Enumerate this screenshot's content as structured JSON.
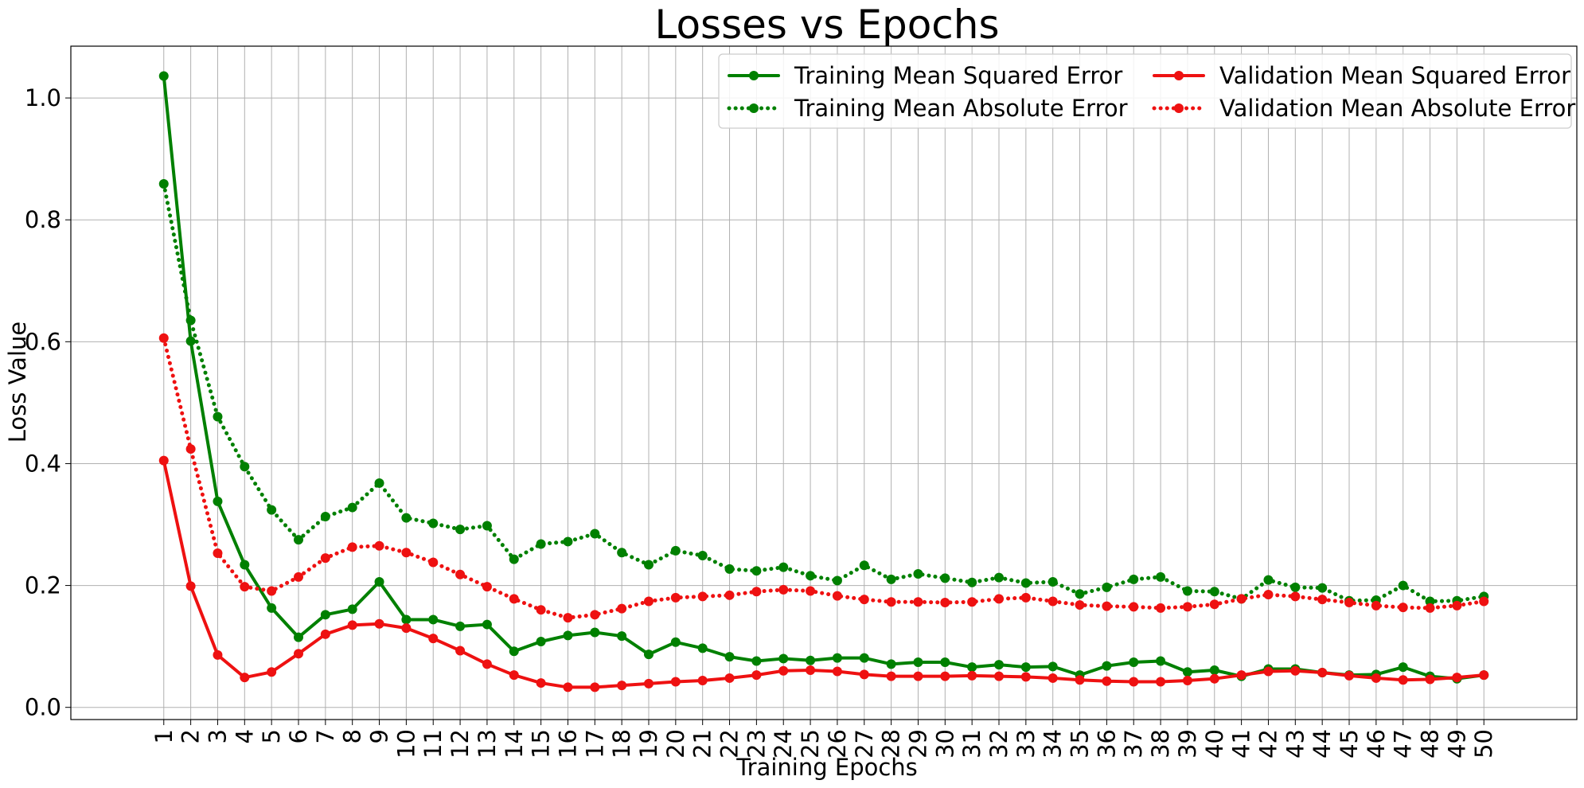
{
  "chart_data": {
    "type": "line",
    "title": "Losses vs Epochs",
    "xlabel": "Training Epochs",
    "ylabel": "Loss Value",
    "ylim": [
      -0.02,
      1.085
    ],
    "yticks": [
      "0.0",
      "0.2",
      "0.4",
      "0.6",
      "0.8",
      "1.0"
    ],
    "ytick_values": [
      0.0,
      0.2,
      0.4,
      0.6,
      0.8,
      1.0
    ],
    "grid": true,
    "legend_placement": "top-right",
    "x": [
      1,
      2,
      3,
      4,
      5,
      6,
      7,
      8,
      9,
      10,
      11,
      12,
      13,
      14,
      15,
      16,
      17,
      18,
      19,
      20,
      21,
      22,
      23,
      24,
      25,
      26,
      27,
      28,
      29,
      30,
      31,
      32,
      33,
      34,
      35,
      36,
      37,
      38,
      39,
      40,
      41,
      42,
      43,
      44,
      45,
      46,
      47,
      48,
      49,
      50
    ],
    "series": [
      {
        "name": "Training Mean Squared Error",
        "color": "#008000",
        "style": "solid",
        "values": [
          1.036,
          0.601,
          0.338,
          0.234,
          0.163,
          0.115,
          0.152,
          0.161,
          0.206,
          0.144,
          0.144,
          0.133,
          0.136,
          0.092,
          0.108,
          0.118,
          0.123,
          0.117,
          0.087,
          0.107,
          0.097,
          0.083,
          0.076,
          0.08,
          0.077,
          0.081,
          0.081,
          0.071,
          0.074,
          0.074,
          0.066,
          0.07,
          0.066,
          0.067,
          0.053,
          0.068,
          0.074,
          0.076,
          0.058,
          0.061,
          0.051,
          0.063,
          0.063,
          0.057,
          0.053,
          0.054,
          0.066,
          0.051,
          0.047,
          0.053
        ]
      },
      {
        "name": "Training Mean Absolute Error",
        "color": "#008000",
        "style": "dotted",
        "values": [
          0.859,
          0.635,
          0.477,
          0.395,
          0.324,
          0.275,
          0.313,
          0.328,
          0.368,
          0.311,
          0.302,
          0.292,
          0.298,
          0.243,
          0.268,
          0.272,
          0.285,
          0.254,
          0.234,
          0.257,
          0.249,
          0.227,
          0.224,
          0.23,
          0.216,
          0.208,
          0.233,
          0.21,
          0.219,
          0.212,
          0.205,
          0.213,
          0.204,
          0.206,
          0.186,
          0.197,
          0.21,
          0.214,
          0.191,
          0.19,
          0.178,
          0.209,
          0.197,
          0.196,
          0.175,
          0.176,
          0.2,
          0.174,
          0.175,
          0.182
        ]
      },
      {
        "name": "Validation Mean Squared Error",
        "color": "#ee1111",
        "style": "solid",
        "values": [
          0.405,
          0.199,
          0.086,
          0.049,
          0.058,
          0.088,
          0.12,
          0.135,
          0.137,
          0.13,
          0.113,
          0.093,
          0.071,
          0.053,
          0.04,
          0.033,
          0.033,
          0.036,
          0.039,
          0.042,
          0.044,
          0.048,
          0.053,
          0.06,
          0.061,
          0.059,
          0.054,
          0.051,
          0.051,
          0.051,
          0.052,
          0.051,
          0.05,
          0.048,
          0.045,
          0.043,
          0.042,
          0.042,
          0.044,
          0.047,
          0.053,
          0.059,
          0.06,
          0.057,
          0.052,
          0.048,
          0.045,
          0.046,
          0.049,
          0.053
        ]
      },
      {
        "name": "Validation Mean Absolute Error",
        "color": "#ee1111",
        "style": "dotted",
        "values": [
          0.606,
          0.424,
          0.253,
          0.198,
          0.191,
          0.214,
          0.245,
          0.263,
          0.265,
          0.254,
          0.238,
          0.218,
          0.198,
          0.178,
          0.16,
          0.147,
          0.152,
          0.162,
          0.174,
          0.18,
          0.182,
          0.184,
          0.19,
          0.193,
          0.191,
          0.183,
          0.177,
          0.173,
          0.173,
          0.172,
          0.173,
          0.178,
          0.18,
          0.174,
          0.168,
          0.166,
          0.165,
          0.163,
          0.165,
          0.169,
          0.178,
          0.185,
          0.182,
          0.177,
          0.172,
          0.167,
          0.164,
          0.163,
          0.167,
          0.174
        ]
      }
    ]
  }
}
